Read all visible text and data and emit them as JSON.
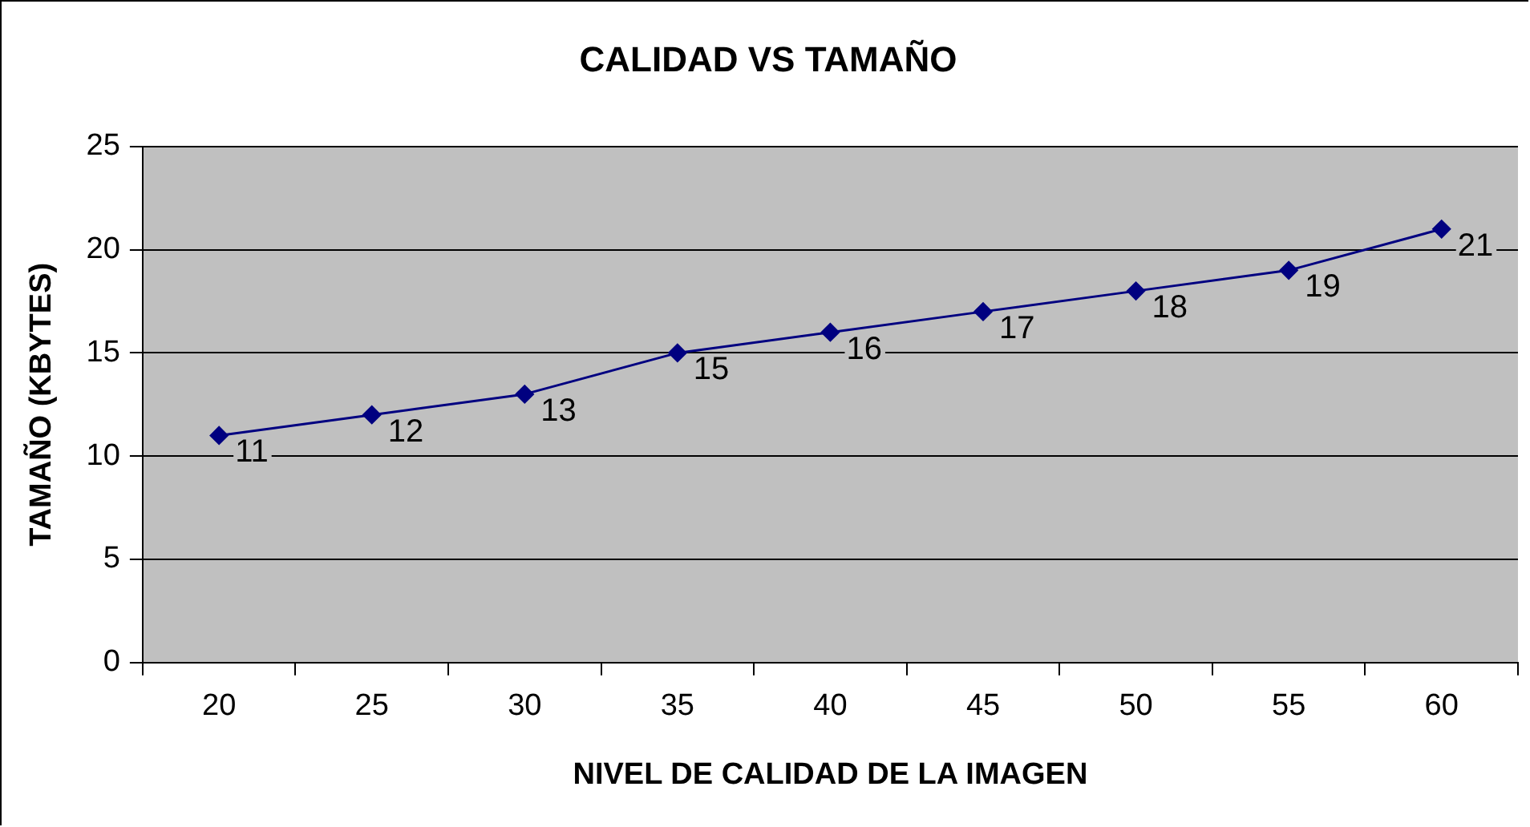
{
  "chart_data": {
    "type": "line",
    "title": "CALIDAD VS TAMAÑO",
    "xlabel": "NIVEL DE CALIDAD DE LA IMAGEN",
    "ylabel": "TAMAÑO (KBYTES)",
    "categories": [
      "20",
      "25",
      "30",
      "35",
      "40",
      "45",
      "50",
      "55",
      "60"
    ],
    "series": [
      {
        "color": "#000080",
        "values": [
          11,
          12,
          13,
          15,
          16,
          17,
          18,
          19,
          21
        ]
      }
    ],
    "ylim": [
      0,
      25
    ],
    "yticks": [
      0,
      5,
      10,
      15,
      20,
      25
    ],
    "grid": "y",
    "marker": "diamond",
    "data_labels": true
  }
}
